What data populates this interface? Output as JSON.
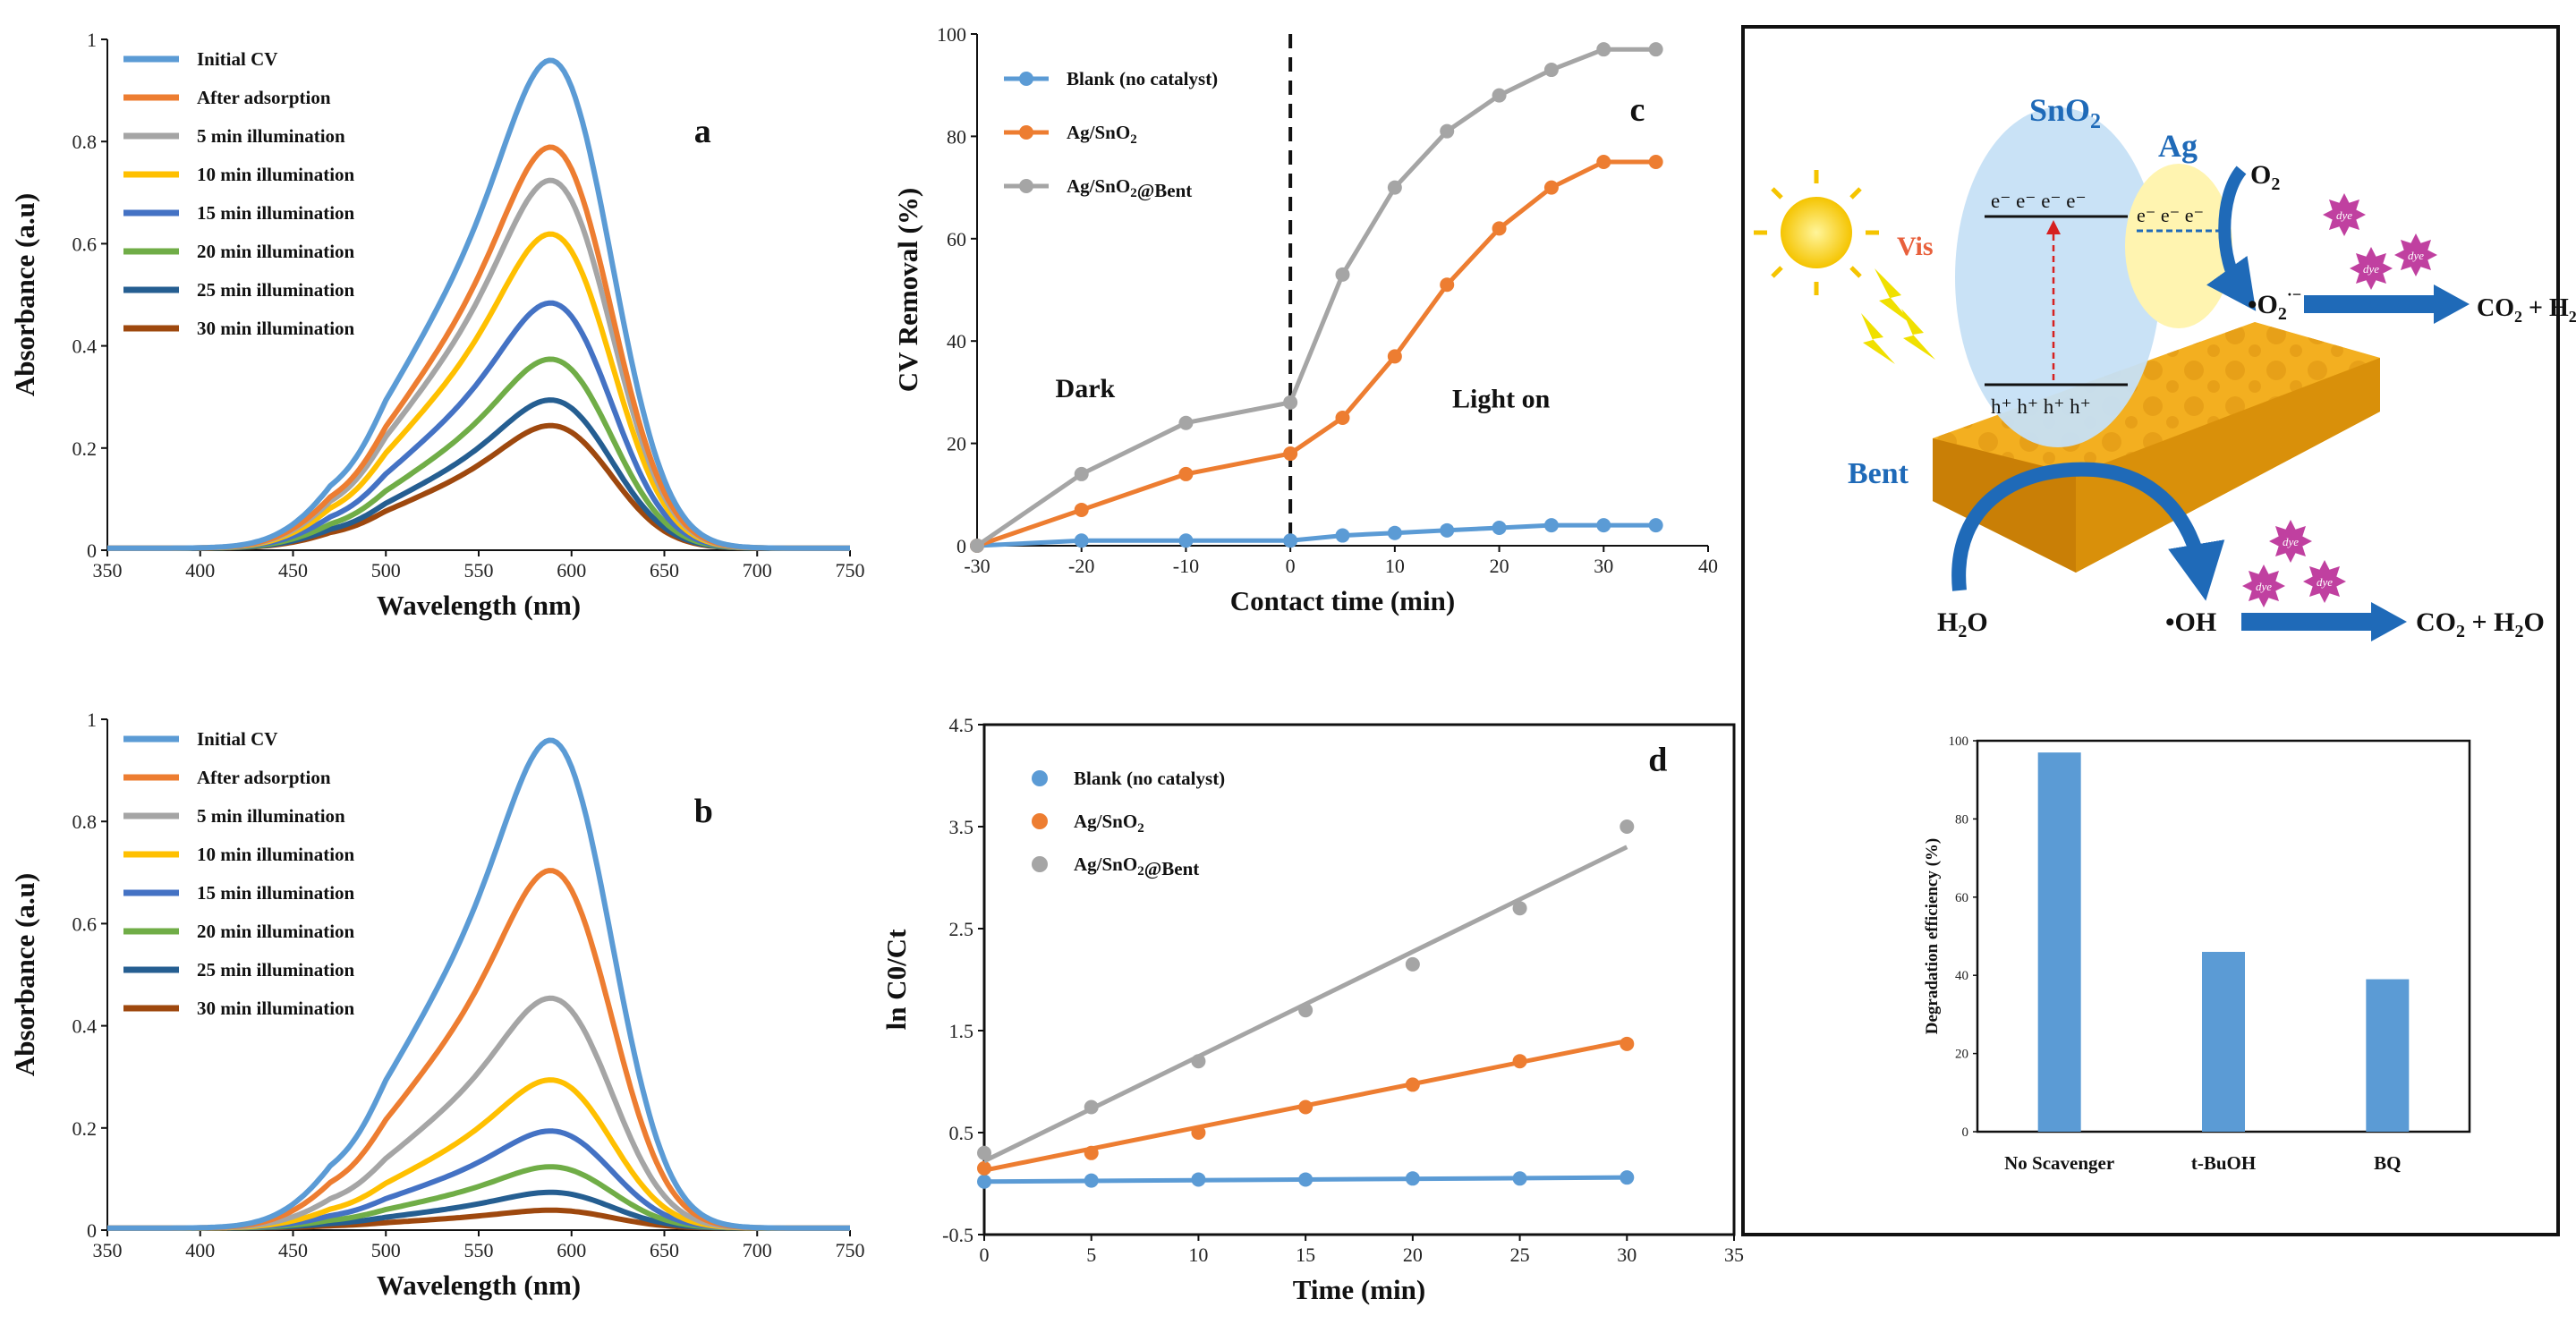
{
  "chart_data": [
    {
      "id": "a",
      "type": "line",
      "panel_label": "a",
      "xlabel": "Wavelength (nm)",
      "ylabel": "Absorbance (a.u)",
      "xlim": [
        350,
        750
      ],
      "ylim": [
        0,
        1
      ],
      "xticks": [
        350,
        400,
        450,
        500,
        550,
        600,
        650,
        700,
        750
      ],
      "yticks": [
        0,
        0.2,
        0.4,
        0.6,
        0.8,
        1
      ],
      "ytick_labels": [
        "0",
        "0.2",
        "0.4",
        "0.6",
        "0.8",
        "1"
      ],
      "series": [
        {
          "name": "Initial CV",
          "color": "#5b9bd5",
          "peak": 0.955
        },
        {
          "name": "After adsorption",
          "color": "#ed7d31",
          "peak": 0.785
        },
        {
          "name": "5 min illumination",
          "color": "#a5a5a5",
          "peak": 0.72
        },
        {
          "name": "10 min illumination",
          "color": "#ffc000",
          "peak": 0.615
        },
        {
          "name": "15 min illumination",
          "color": "#4472c4",
          "peak": 0.48
        },
        {
          "name": "20 min illumination",
          "color": "#70ad47",
          "peak": 0.37
        },
        {
          "name": "25 min illumination",
          "color": "#255e91",
          "peak": 0.29
        },
        {
          "name": "30 min illumination",
          "color": "#9e480e",
          "peak": 0.24
        }
      ]
    },
    {
      "id": "b",
      "type": "line",
      "panel_label": "b",
      "xlabel": "Wavelength (nm)",
      "ylabel": "Absorbance (a.u)",
      "xlim": [
        350,
        750
      ],
      "ylim": [
        0,
        1
      ],
      "xticks": [
        350,
        400,
        450,
        500,
        550,
        600,
        650,
        700,
        750
      ],
      "yticks": [
        0,
        0.2,
        0.4,
        0.6,
        0.8,
        1
      ],
      "ytick_labels": [
        "0",
        "0.2",
        "0.4",
        "0.6",
        "0.8",
        "1"
      ],
      "series": [
        {
          "name": "Initial CV",
          "color": "#5b9bd5",
          "peak": 0.955
        },
        {
          "name": "After adsorption",
          "color": "#ed7d31",
          "peak": 0.7
        },
        {
          "name": "5 min illumination",
          "color": "#a5a5a5",
          "peak": 0.45
        },
        {
          "name": "10 min illumination",
          "color": "#ffc000",
          "peak": 0.29
        },
        {
          "name": "15 min illumination",
          "color": "#4472c4",
          "peak": 0.19
        },
        {
          "name": "20 min illumination",
          "color": "#70ad47",
          "peak": 0.12
        },
        {
          "name": "25 min illumination",
          "color": "#255e91",
          "peak": 0.07
        },
        {
          "name": "30 min illumination",
          "color": "#9e480e",
          "peak": 0.035
        }
      ]
    },
    {
      "id": "c",
      "type": "line",
      "panel_label": "c",
      "xlabel": "Contact time (min)",
      "ylabel": "CV Removal (%)",
      "xlim": [
        -30,
        40
      ],
      "ylim": [
        0,
        100
      ],
      "xticks": [
        -30,
        -20,
        -10,
        0,
        10,
        20,
        30,
        40
      ],
      "yticks": [
        0,
        20,
        40,
        60,
        80,
        100
      ],
      "annotations": [
        "Dark",
        "Light on"
      ],
      "x": [
        -30,
        -20,
        -10,
        0,
        5,
        10,
        15,
        20,
        25,
        30,
        35
      ],
      "series": [
        {
          "name": "Blank (no catalyst)",
          "color": "#5b9bd5",
          "values": [
            0,
            1,
            1,
            1,
            2,
            2.5,
            3,
            3.5,
            4,
            4,
            4
          ]
        },
        {
          "name": "Ag/SnO2",
          "color": "#ed7d31",
          "values": [
            0,
            7,
            14,
            18,
            25,
            37,
            51,
            62,
            70,
            75,
            75
          ]
        },
        {
          "name": "Ag/SnO2@Bent",
          "color": "#a5a5a5",
          "values": [
            0,
            14,
            24,
            28,
            53,
            70,
            81,
            88,
            93,
            97,
            97
          ]
        }
      ]
    },
    {
      "id": "d",
      "type": "scatter",
      "panel_label": "d",
      "xlabel": "Time (min)",
      "ylabel": "ln C0/Ct",
      "xlim": [
        0,
        35
      ],
      "ylim": [
        -0.5,
        4.5
      ],
      "xticks": [
        0,
        5,
        10,
        15,
        20,
        25,
        30,
        35
      ],
      "yticks": [
        -0.5,
        0.5,
        1.5,
        2.5,
        3.5,
        4.5
      ],
      "x": [
        0,
        5,
        10,
        15,
        20,
        25,
        30
      ],
      "series": [
        {
          "name": "Blank (no catalyst)",
          "color": "#5b9bd5",
          "values": [
            0.02,
            0.03,
            0.04,
            0.04,
            0.05,
            0.05,
            0.06
          ],
          "fit": [
            0.02,
            0.06
          ]
        },
        {
          "name": "Ag/SnO2",
          "color": "#ed7d31",
          "values": [
            0.15,
            0.3,
            0.5,
            0.75,
            0.97,
            1.2,
            1.37
          ],
          "fit": [
            0.13,
            1.4
          ]
        },
        {
          "name": "Ag/SnO2@Bent",
          "color": "#a5a5a5",
          "values": [
            0.3,
            0.75,
            1.2,
            1.7,
            2.15,
            2.7,
            3.5
          ],
          "fit": [
            0.22,
            3.3
          ]
        }
      ]
    },
    {
      "id": "e",
      "type": "bar",
      "ylabel": "Degradation efficiency (%)",
      "categories": [
        "No Scavenger",
        "t-BuOH",
        "BQ"
      ],
      "values": [
        97,
        46,
        39
      ],
      "ylim": [
        0,
        100
      ],
      "yticks": [
        0,
        20,
        40,
        60,
        80,
        100
      ],
      "color": "#5b9bd5"
    }
  ],
  "scheme": {
    "sno2": "SnO",
    "sno2_sub": "2",
    "ag": "Ag",
    "vis": "Vis",
    "bent": "Bent",
    "o2": "O",
    "o2_sub": "2",
    "superoxide": "•O",
    "superoxide_sub": "2",
    "superoxide_sup": "·−",
    "oh": "•OH",
    "h2o": "H",
    "h2o_sub": "2",
    "h2o_tail": "O",
    "co2_h2o": "CO",
    "co2_h2o_sub": "2",
    "co2_h2o_tail": " + H",
    "co2_h2o_sub2": "2",
    "co2_h2o_tail2": "O",
    "co2_h2": "CO",
    "co2_h2_sub": "2",
    "co2_h2_tail": " + H",
    "co2_h2_sub2": "2",
    "electrons": "e⁻  e⁻  e⁻  e⁻",
    "ag_electrons": "e⁻ e⁻ e⁻",
    "holes": "h⁺  h⁺  h⁺  h⁺",
    "dye": "dye",
    "colors": {
      "sno2": "#c6e0f5",
      "ag": "#fff4b0",
      "bent": "#f0a818",
      "arrow": "#1f6ab8",
      "dye": "#c040a0",
      "sun": "#f5d000"
    }
  }
}
